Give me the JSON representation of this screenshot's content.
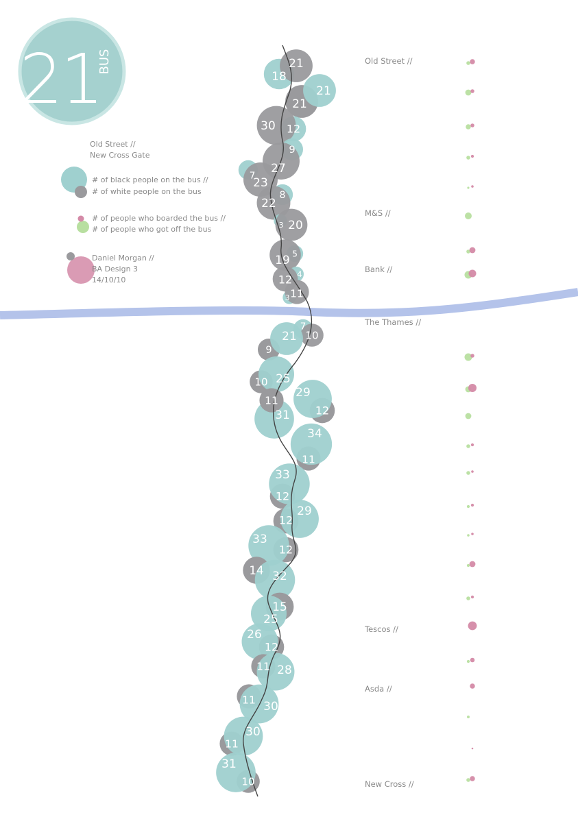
{
  "colors": {
    "black_people": "#9fd0cf",
    "white_people": "#9a9a9d",
    "boarded": "#d48aa7",
    "got_off": "#b8dfa0",
    "river": "#b4c3ea",
    "route_line": "#444444",
    "logo": "#a5d1cf"
  },
  "logo": {
    "number": "21",
    "word": "BUS"
  },
  "legend": {
    "route_from": "Old Street //",
    "route_to": "New Cross Gate",
    "black_label": "# of black people on the bus //",
    "white_label": "# of white people on the bus",
    "boarded_label": "# of people who boarded the bus  //",
    "off_label": "# of people who got off the bus",
    "author": "Daniel Morgan //",
    "course": "BA Design 3",
    "date": "14/10/10"
  },
  "stops": {
    "old_street": "Old Street //",
    "ms": "M&S //",
    "bank": "Bank //",
    "thames": "The Thames //",
    "tescos": "Tescos //",
    "asda": "Asda //",
    "new_cross": "New Cross //"
  },
  "chart_data": {
    "type": "bubble-timeline",
    "title": "21 BUS",
    "subtitle": "Old Street // New Cross Gate",
    "series": [
      {
        "name": "# of black people on the bus",
        "values": [
          18,
          21,
          12,
          9,
          7,
          8,
          3,
          5,
          4,
          3,
          7,
          21,
          25,
          29,
          31,
          34,
          33,
          29,
          33,
          32,
          25,
          26,
          28,
          30,
          30,
          31
        ]
      },
      {
        "name": "# of white people on the bus",
        "values": [
          21,
          21,
          30,
          27,
          23,
          22,
          20,
          19,
          12,
          11,
          10,
          9,
          10,
          12,
          11,
          11,
          12,
          12,
          12,
          14,
          15,
          12,
          11,
          11,
          11,
          10
        ]
      }
    ],
    "boarded_off": [
      {
        "boarded": 2,
        "off": 1
      },
      {
        "boarded": 1,
        "off": 3
      },
      {
        "boarded": 1,
        "off": 2
      },
      {
        "boarded": 0.5,
        "off": 1
      },
      {
        "boarded": 0.3,
        "off": 0.2
      },
      {
        "boarded": 0,
        "off": 4
      },
      {
        "boarded": 3,
        "off": 1
      },
      {
        "boarded": 5,
        "off": 5
      },
      {
        "boarded": 1,
        "off": 5
      },
      {
        "boarded": 6,
        "off": 3
      },
      {
        "boarded": 0,
        "off": 3
      },
      {
        "boarded": 0.5,
        "off": 1
      },
      {
        "boarded": 0.3,
        "off": 1
      },
      {
        "boarded": 0.5,
        "off": 0.5
      },
      {
        "boarded": 0.3,
        "off": 0.3
      },
      {
        "boarded": 3,
        "off": 0.5
      },
      {
        "boarded": 0.5,
        "off": 1
      },
      {
        "boarded": 7,
        "off": 0
      },
      {
        "boarded": 1.5,
        "off": 0.5
      },
      {
        "boarded": 2,
        "off": 0
      },
      {
        "boarded": 0,
        "off": 0.4
      },
      {
        "boarded": 0.1,
        "off": 0
      },
      {
        "boarded": 2,
        "off": 1
      }
    ]
  }
}
